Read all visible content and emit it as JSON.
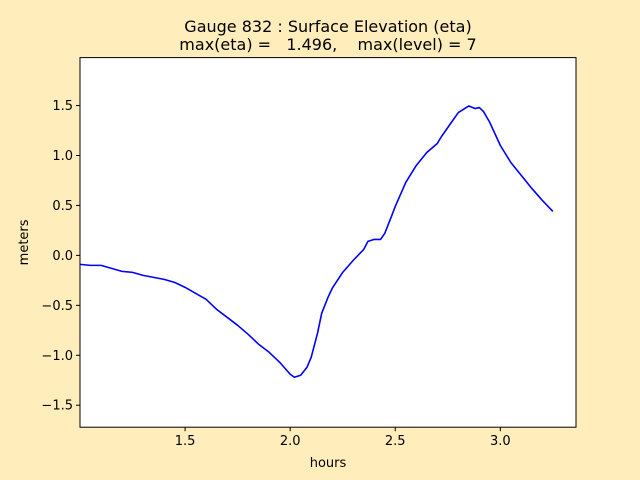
{
  "figure": {
    "background": "#ffedbb"
  },
  "chart_data": {
    "type": "line",
    "title": "Gauge 832 : Surface Elevation (eta)",
    "subtitle": "max(eta) =   1.496,    max(level) = 7",
    "xlabel": "hours",
    "ylabel": "meters",
    "xlim": [
      1.0,
      3.36
    ],
    "ylim": [
      -1.72,
      1.98
    ],
    "xticks": [
      1.5,
      2.0,
      2.5,
      3.0
    ],
    "xtick_labels": [
      "1.5",
      "2.0",
      "2.5",
      "3.0"
    ],
    "yticks": [
      -1.5,
      -1.0,
      -0.5,
      0.0,
      0.5,
      1.0,
      1.5
    ],
    "ytick_labels": [
      "−1.5",
      "−1.0",
      "−0.5",
      "0.0",
      "0.5",
      "1.0",
      "1.5"
    ],
    "grid": false,
    "legend": "none",
    "series": [
      {
        "color": "#0000ff",
        "x": [
          1.0,
          1.05,
          1.1,
          1.15,
          1.2,
          1.25,
          1.3,
          1.35,
          1.4,
          1.45,
          1.5,
          1.55,
          1.6,
          1.65,
          1.7,
          1.75,
          1.8,
          1.85,
          1.9,
          1.95,
          2.0,
          2.02,
          2.05,
          2.08,
          2.1,
          2.13,
          2.15,
          2.18,
          2.2,
          2.25,
          2.3,
          2.35,
          2.37,
          2.4,
          2.43,
          2.45,
          2.48,
          2.5,
          2.55,
          2.6,
          2.65,
          2.7,
          2.72,
          2.75,
          2.8,
          2.85,
          2.88,
          2.9,
          2.92,
          2.95,
          3.0,
          3.05,
          3.1,
          3.15,
          3.2,
          3.25
        ],
        "y": [
          -0.09,
          -0.1,
          -0.1,
          -0.13,
          -0.16,
          -0.17,
          -0.2,
          -0.22,
          -0.24,
          -0.27,
          -0.32,
          -0.38,
          -0.44,
          -0.54,
          -0.62,
          -0.7,
          -0.79,
          -0.89,
          -0.97,
          -1.07,
          -1.19,
          -1.22,
          -1.2,
          -1.12,
          -1.02,
          -0.78,
          -0.58,
          -0.42,
          -0.33,
          -0.17,
          -0.05,
          0.06,
          0.14,
          0.16,
          0.16,
          0.22,
          0.38,
          0.49,
          0.73,
          0.9,
          1.03,
          1.12,
          1.19,
          1.28,
          1.43,
          1.496,
          1.47,
          1.48,
          1.44,
          1.33,
          1.1,
          0.93,
          0.8,
          0.67,
          0.55,
          0.44
        ]
      }
    ]
  }
}
